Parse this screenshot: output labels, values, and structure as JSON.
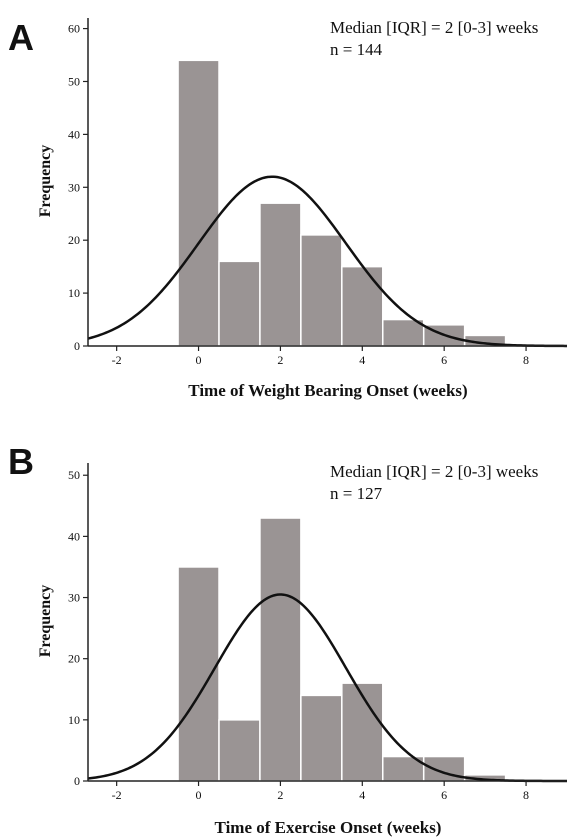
{
  "chart_data": [
    {
      "type": "bar",
      "panel_label": "A",
      "annotation_lines": [
        "Median [IQR] = 2 [0-3] weeks",
        "n = 144"
      ],
      "xlabel": "Time of Weight Bearing Onset (weeks)",
      "ylabel": "Frequency",
      "xlim": [
        -2.7,
        9.0
      ],
      "ylim": [
        0,
        62
      ],
      "x_ticks": [
        -2,
        0,
        2,
        4,
        6,
        8
      ],
      "y_ticks": [
        0,
        10,
        20,
        30,
        40,
        50,
        60
      ],
      "categories": [
        0,
        1,
        2,
        3,
        4,
        5,
        6,
        7
      ],
      "values": [
        54,
        16,
        27,
        21,
        15,
        5,
        4,
        2
      ],
      "bin_width": 1,
      "normal_curve": {
        "mean": 1.8,
        "sd": 1.8,
        "peak": 32
      },
      "grid": false,
      "colors": {
        "bar": "#9a9494",
        "bar_edge": "#ffffff",
        "curve": "#111111",
        "axis": "#222222"
      }
    },
    {
      "type": "bar",
      "panel_label": "B",
      "annotation_lines": [
        "Median [IQR] = 2 [0-3] weeks",
        "n = 127"
      ],
      "xlabel": "Time of Exercise Onset (weeks)",
      "ylabel": "Frequency",
      "xlim": [
        -2.7,
        9.0
      ],
      "ylim": [
        0,
        52
      ],
      "x_ticks": [
        -2,
        0,
        2,
        4,
        6,
        8
      ],
      "y_ticks": [
        0,
        10,
        20,
        30,
        40,
        50
      ],
      "categories": [
        0,
        1,
        2,
        3,
        4,
        5,
        6,
        7
      ],
      "values": [
        35,
        10,
        43,
        14,
        16,
        4,
        4,
        1
      ],
      "bin_width": 1,
      "normal_curve": {
        "mean": 2.0,
        "sd": 1.6,
        "peak": 30.5
      },
      "grid": false,
      "colors": {
        "bar": "#9a9494",
        "bar_edge": "#ffffff",
        "curve": "#111111",
        "axis": "#222222"
      }
    }
  ]
}
